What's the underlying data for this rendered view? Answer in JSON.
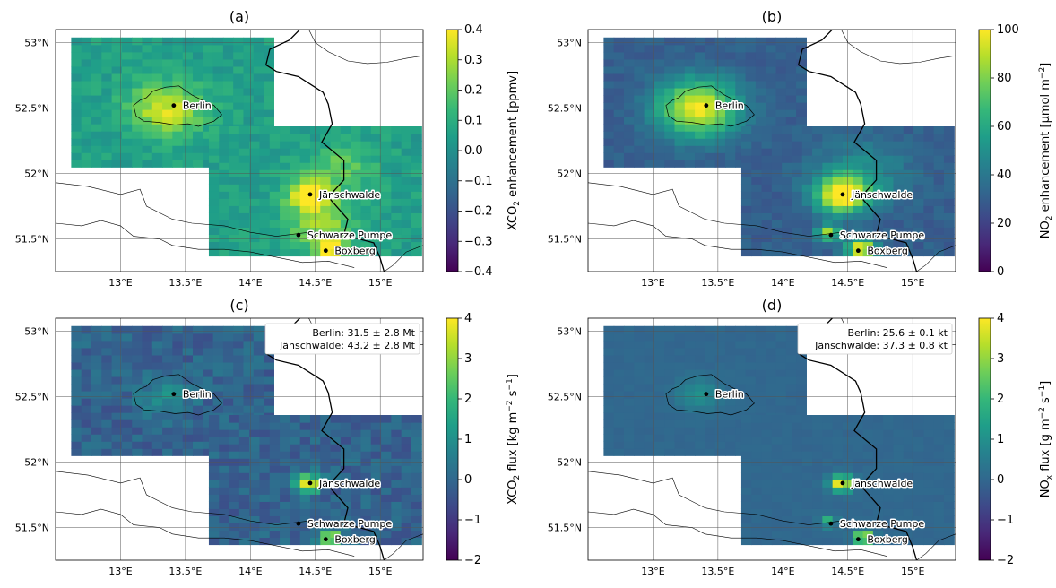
{
  "chart_data": [
    {
      "type": "heatmap",
      "title": "(a)",
      "colorbar": {
        "label_main": "XCO",
        "label_sub": "2",
        "label_tail": " enhancement [ppmv]",
        "range": [
          -0.4,
          0.4
        ],
        "ticks": [
          "−0.4",
          "−0.3",
          "−0.2",
          "−0.1",
          "0.0",
          "0.1",
          "0.2",
          "0.3",
          "0.4"
        ],
        "tick_values": [
          -0.4,
          -0.3,
          -0.2,
          -0.1,
          0.0,
          0.1,
          0.2,
          0.3,
          0.4
        ]
      },
      "x_ticks": [
        "13°E",
        "13.5°E",
        "14°E",
        "14.5°E",
        "15°E"
      ],
      "x_tick_values": [
        13.0,
        13.5,
        14.0,
        14.5,
        15.0
      ],
      "y_ticks": [
        "51.5°N",
        "52°N",
        "52.5°N",
        "53°N"
      ],
      "y_tick_values": [
        51.5,
        52.0,
        52.5,
        53.0
      ],
      "lon_range": [
        12.5,
        15.33
      ],
      "lat_range": [
        51.25,
        53.1
      ],
      "background_value": 0.05,
      "noise": 0.05,
      "hotspots": [
        {
          "lon": 13.35,
          "lat": 52.5,
          "value": 0.3,
          "radius": 0.2
        },
        {
          "lon": 14.45,
          "lat": 51.84,
          "value": 0.4,
          "radius": 0.12
        },
        {
          "lon": 14.55,
          "lat": 51.6,
          "value": 0.22,
          "radius": 0.18
        },
        {
          "lon": 14.62,
          "lat": 51.43,
          "value": 0.4,
          "radius": 0.08
        },
        {
          "lon": 14.7,
          "lat": 52.05,
          "value": 0.15,
          "radius": 0.18
        }
      ],
      "annotation": []
    },
    {
      "type": "heatmap",
      "title": "(b)",
      "colorbar": {
        "label_main": "NO",
        "label_sub": "2",
        "label_tail": " enhancement [µmol m",
        "label_sup": "−2",
        "label_end": "]",
        "range": [
          0,
          100
        ],
        "ticks": [
          "0",
          "20",
          "40",
          "60",
          "80",
          "100"
        ],
        "tick_values": [
          0,
          20,
          40,
          60,
          80,
          100
        ]
      },
      "x_ticks": [
        "13°E",
        "13.5°E",
        "14°E",
        "14.5°E",
        "15°E"
      ],
      "x_tick_values": [
        13.0,
        13.5,
        14.0,
        14.5,
        15.0
      ],
      "y_ticks": [
        "51.5°N",
        "52°N",
        "52.5°N",
        "53°N"
      ],
      "y_tick_values": [
        51.5,
        52.0,
        52.5,
        53.0
      ],
      "lon_range": [
        12.5,
        15.33
      ],
      "lat_range": [
        51.25,
        53.1
      ],
      "background_value": 30,
      "noise": 4,
      "hotspots": [
        {
          "lon": 13.35,
          "lat": 52.5,
          "value": 70,
          "radius": 0.22
        },
        {
          "lon": 14.45,
          "lat": 51.84,
          "value": 75,
          "radius": 0.14
        },
        {
          "lon": 14.35,
          "lat": 51.55,
          "value": 60,
          "radius": 0.06
        },
        {
          "lon": 14.6,
          "lat": 51.43,
          "value": 75,
          "radius": 0.08
        },
        {
          "lon": 14.6,
          "lat": 52.0,
          "value": 20,
          "radius": 0.25
        }
      ],
      "annotation": []
    },
    {
      "type": "heatmap",
      "title": "(c)",
      "colorbar": {
        "label_main": "XCO",
        "label_sub": "2",
        "label_tail": " flux [kg m",
        "label_sup": "−2",
        "label_mid": " s",
        "label_sup2": "−1",
        "label_end": "]",
        "range": [
          -2,
          4
        ],
        "ticks": [
          "−2",
          "−1",
          "0",
          "1",
          "2",
          "3",
          "4"
        ],
        "tick_values": [
          -2,
          -1,
          0,
          1,
          2,
          3,
          4
        ]
      },
      "x_ticks": [
        "13°E",
        "13.5°E",
        "14°E",
        "14.5°E",
        "15°E"
      ],
      "x_tick_values": [
        13.0,
        13.5,
        14.0,
        14.5,
        15.0
      ],
      "y_ticks": [
        "51.5°N",
        "52°N",
        "52.5°N",
        "53°N"
      ],
      "y_tick_values": [
        51.5,
        52.0,
        52.5,
        53.0
      ],
      "lon_range": [
        12.5,
        15.33
      ],
      "lat_range": [
        51.25,
        53.1
      ],
      "background_value": -0.1,
      "noise": 0.45,
      "hotspots": [
        {
          "lon": 13.35,
          "lat": 52.5,
          "value": 1.0,
          "radius": 0.15
        },
        {
          "lon": 14.45,
          "lat": 51.84,
          "value": 4.2,
          "radius": 0.07
        },
        {
          "lon": 14.62,
          "lat": 51.43,
          "value": 4.2,
          "radius": 0.06
        }
      ],
      "annotation": [
        "Berlin: 31.5 ± 2.8 Mt",
        "Jänschwalde: 43.2 ± 2.8 Mt"
      ]
    },
    {
      "type": "heatmap",
      "title": "(d)",
      "colorbar": {
        "label_main": "NO",
        "label_sub": "x",
        "label_tail": " flux [g m",
        "label_sup": "−2",
        "label_mid": " s",
        "label_sup2": "−1",
        "label_end": "]",
        "range": [
          -2,
          4
        ],
        "ticks": [
          "−2",
          "−1",
          "0",
          "1",
          "2",
          "3",
          "4"
        ],
        "tick_values": [
          -2,
          -1,
          0,
          1,
          2,
          3,
          4
        ]
      },
      "x_ticks": [
        "13°E",
        "13.5°E",
        "14°E",
        "14.5°E",
        "15°E"
      ],
      "x_tick_values": [
        13.0,
        13.5,
        14.0,
        14.5,
        15.0
      ],
      "y_ticks": [
        "51.5°N",
        "52°N",
        "52.5°N",
        "53°N"
      ],
      "y_tick_values": [
        51.5,
        52.0,
        52.5,
        53.0
      ],
      "lon_range": [
        12.5,
        15.33
      ],
      "lat_range": [
        51.25,
        53.1
      ],
      "background_value": 0.0,
      "noise": 0.08,
      "hotspots": [
        {
          "lon": 13.35,
          "lat": 52.52,
          "value": 1.0,
          "radius": 0.12
        },
        {
          "lon": 14.45,
          "lat": 51.84,
          "value": 4.2,
          "radius": 0.06
        },
        {
          "lon": 14.35,
          "lat": 51.55,
          "value": 2.0,
          "radius": 0.04
        },
        {
          "lon": 14.62,
          "lat": 51.43,
          "value": 4.2,
          "radius": 0.05
        }
      ],
      "annotation": [
        "Berlin: 25.6 ± 0.1 kt",
        "Jänschwalde: 37.3 ± 0.8 kt"
      ]
    }
  ],
  "domain": {
    "region_a": {
      "lon": [
        12.62,
        14.18
      ],
      "lat": [
        52.05,
        53.0
      ]
    },
    "region_b": {
      "lon": [
        13.68,
        15.25
      ],
      "lat": [
        51.37,
        52.32
      ]
    }
  },
  "cities": [
    {
      "name": "Berlin",
      "lon": 13.41,
      "lat": 52.52
    },
    {
      "name": "Jänschwalde",
      "lon": 14.46,
      "lat": 51.84
    },
    {
      "name": "Schwarze Pumpe",
      "lon": 14.37,
      "lat": 51.53
    },
    {
      "name": "Boxberg",
      "lon": 14.58,
      "lat": 51.41
    }
  ],
  "colors": {
    "colormap": "viridis",
    "grid": "#555555",
    "border": "#000000",
    "marker": "#000000"
  }
}
